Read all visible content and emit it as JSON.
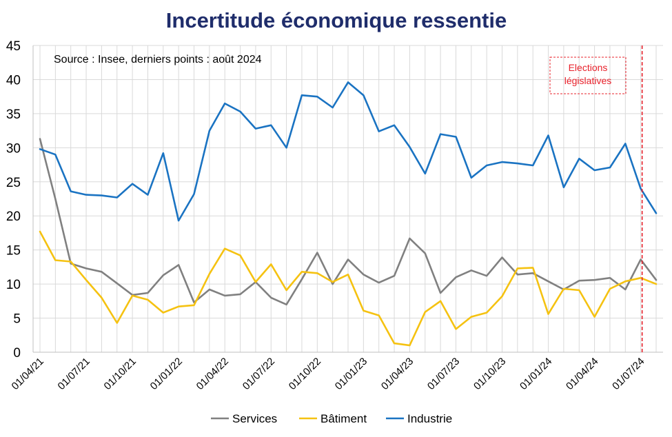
{
  "chart_data": {
    "type": "line",
    "title": "Incertitude économique ressentie",
    "source_note": "Source :  Insee, derniers points :  août 2024",
    "annotation": {
      "label_line1": "Elections",
      "label_line2": "législatives",
      "at_index": 39,
      "color": "#e8202a"
    },
    "ylim": [
      0,
      45
    ],
    "y_ticks": [
      "0",
      "5",
      "10",
      "15",
      "20",
      "25",
      "30",
      "35",
      "40",
      "45"
    ],
    "x_tick_labels": [
      {
        "index": 0,
        "label": "01/04/21"
      },
      {
        "index": 3,
        "label": "01/07/21"
      },
      {
        "index": 6,
        "label": "01/10/21"
      },
      {
        "index": 9,
        "label": "01/01/22"
      },
      {
        "index": 12,
        "label": "01/04/22"
      },
      {
        "index": 15,
        "label": "01/07/22"
      },
      {
        "index": 18,
        "label": "01/10/22"
      },
      {
        "index": 21,
        "label": "01/01/23"
      },
      {
        "index": 24,
        "label": "01/04/23"
      },
      {
        "index": 27,
        "label": "01/07/23"
      },
      {
        "index": 30,
        "label": "01/10/23"
      },
      {
        "index": 33,
        "label": "01/01/24"
      },
      {
        "index": 36,
        "label": "01/04/24"
      },
      {
        "index": 39,
        "label": "01/07/24"
      }
    ],
    "series": [
      {
        "name": "Services",
        "color": "#808080",
        "values": [
          31.3,
          22.5,
          13.0,
          12.3,
          11.8,
          10.1,
          8.4,
          8.7,
          11.3,
          12.8,
          7.3,
          9.2,
          8.3,
          8.5,
          10.3,
          8.0,
          7.0,
          10.7,
          14.6,
          10.0,
          13.6,
          11.4,
          10.2,
          11.2,
          16.7,
          14.5,
          8.7,
          11.0,
          12.0,
          11.2,
          13.9,
          11.4,
          11.6,
          10.4,
          9.2,
          10.5,
          10.6,
          10.9,
          9.2,
          13.6,
          10.6
        ]
      },
      {
        "name": "Bâtiment",
        "color": "#f5c211",
        "values": [
          17.7,
          13.5,
          13.3,
          10.6,
          8.0,
          4.3,
          8.3,
          7.7,
          5.8,
          6.7,
          6.9,
          11.5,
          15.2,
          14.2,
          10.3,
          12.9,
          9.1,
          11.8,
          11.6,
          10.3,
          11.4,
          6.1,
          5.4,
          1.3,
          1.0,
          5.9,
          7.5,
          3.4,
          5.2,
          5.8,
          8.2,
          12.3,
          12.4,
          5.6,
          9.3,
          9.1,
          5.2,
          9.3,
          10.4,
          10.9,
          10.0
        ]
      },
      {
        "name": "Industrie",
        "color": "#1a73c2",
        "values": [
          29.8,
          29.0,
          23.6,
          23.1,
          23.0,
          22.7,
          24.7,
          23.1,
          29.2,
          19.3,
          23.2,
          32.5,
          36.5,
          35.3,
          32.8,
          33.3,
          30.0,
          37.7,
          37.5,
          35.9,
          39.6,
          37.7,
          32.4,
          33.3,
          30.1,
          26.2,
          32.0,
          31.6,
          25.6,
          27.4,
          27.9,
          27.7,
          27.4,
          31.8,
          24.2,
          28.4,
          26.7,
          27.1,
          30.6,
          24.0,
          20.4
        ]
      }
    ]
  }
}
